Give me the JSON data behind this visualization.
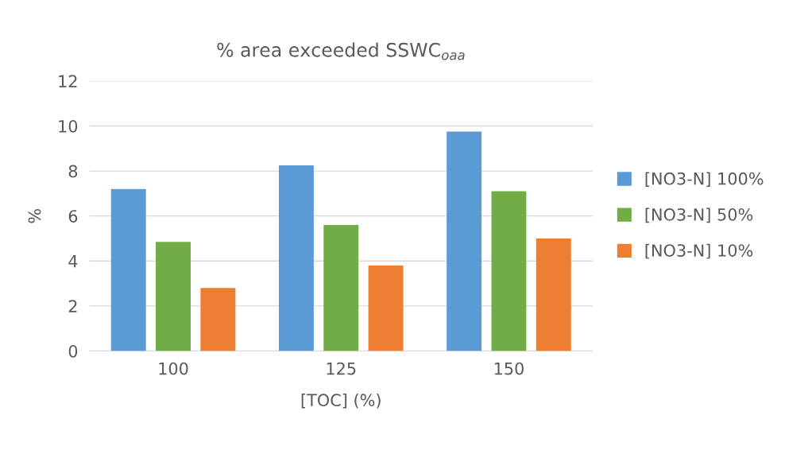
{
  "chart_data": {
    "type": "bar",
    "title": "% area exceeded SSWC$_{oaa}$",
    "xlabel": "[TOC] (%)",
    "ylabel": "%",
    "categories": [
      "100",
      "125",
      "150"
    ],
    "series": [
      {
        "name": "[NO3-N] 100%",
        "color": "#5b9bd5",
        "values": [
          7.2,
          8.25,
          9.75
        ]
      },
      {
        "name": "[NO3-N] 50%",
        "color": "#70ad47",
        "values": [
          4.85,
          5.6,
          7.1
        ]
      },
      {
        "name": "[NO3-N] 10%",
        "color": "#ed7d31",
        "values": [
          2.8,
          3.8,
          5.0
        ]
      }
    ],
    "ylim": [
      0,
      12
    ],
    "yticks": [
      0,
      2,
      4,
      6,
      8,
      10,
      12
    ],
    "grid": "y",
    "legend": "right"
  }
}
